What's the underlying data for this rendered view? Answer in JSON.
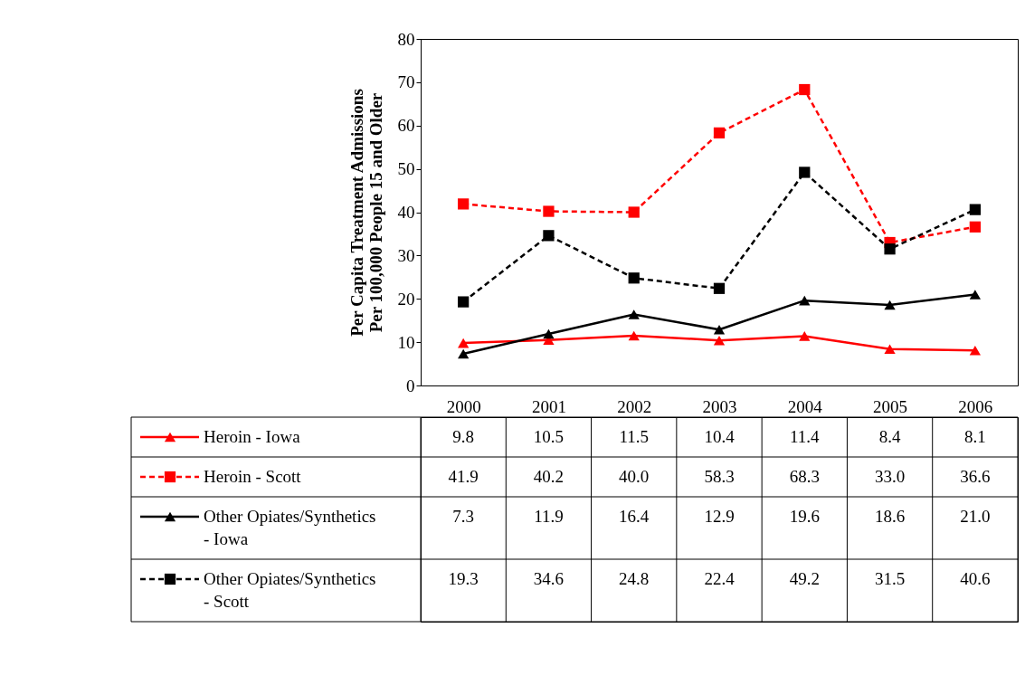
{
  "chart_data": {
    "type": "line",
    "ylabel": "Per Capita Treatment Admissions Per 100,000 People 15 and Older",
    "categories": [
      "2000",
      "2001",
      "2002",
      "2003",
      "2004",
      "2005",
      "2006"
    ],
    "series": [
      {
        "name": "Heroin - Iowa",
        "color": "#ff0000",
        "marker": "triangle",
        "line_style": "solid",
        "values": [
          9.8,
          10.5,
          11.5,
          10.4,
          11.4,
          8.4,
          8.1
        ],
        "value_labels": [
          "9.8",
          "10.5",
          "11.5",
          "10.4",
          "11.4",
          "8.4",
          "8.1"
        ]
      },
      {
        "name": "Heroin - Scott",
        "color": "#ff0000",
        "marker": "square",
        "line_style": "dashed",
        "values": [
          41.9,
          40.2,
          40.0,
          58.3,
          68.3,
          33.0,
          36.6
        ],
        "value_labels": [
          "41.9",
          "40.2",
          "40.0",
          "58.3",
          "68.3",
          "33.0",
          "36.6"
        ]
      },
      {
        "name": "Other Opiates/Synthetics - Iowa",
        "color": "#000000",
        "marker": "triangle",
        "line_style": "solid",
        "values": [
          7.3,
          11.9,
          16.4,
          12.9,
          19.6,
          18.6,
          21.0
        ],
        "value_labels": [
          "7.3",
          "11.9",
          "16.4",
          "12.9",
          "19.6",
          "18.6",
          "21.0"
        ]
      },
      {
        "name": "Other Opiates/Synthetics - Scott",
        "color": "#000000",
        "marker": "square",
        "line_style": "dashed",
        "values": [
          19.3,
          34.6,
          24.8,
          22.4,
          49.2,
          31.5,
          40.6
        ],
        "value_labels": [
          "19.3",
          "34.6",
          "24.8",
          "22.4",
          "49.2",
          "31.5",
          "40.6"
        ]
      }
    ],
    "ylim": [
      0,
      80
    ],
    "yticks": [
      0,
      10,
      20,
      30,
      40,
      50,
      60,
      70,
      80
    ],
    "grid": false,
    "legend": "bottom"
  }
}
